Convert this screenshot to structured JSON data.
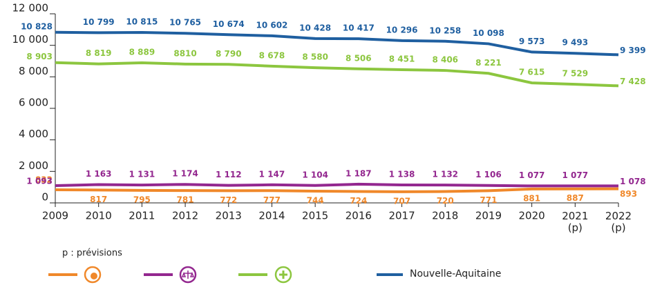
{
  "chart_data": {
    "type": "line",
    "categories": [
      "2009",
      "2010",
      "2011",
      "2012",
      "2013",
      "2014",
      "2015",
      "2016",
      "2017",
      "2018",
      "2019",
      "2020",
      "2021 (p)",
      "2022 (p)"
    ],
    "ylim": [
      0,
      12000
    ],
    "yticks": [
      0,
      {
        "value": 2000,
        "label": "2 000"
      },
      {
        "value": 4000,
        "label": "4 000"
      },
      {
        "value": 6000,
        "label": "6 000"
      },
      {
        "value": 8000,
        "label": "8 000"
      },
      {
        "value": 10000,
        "label": "10 000"
      },
      {
        "value": 12000,
        "label": "12 000"
      }
    ],
    "annotation": "p : prévisions",
    "series": [
      {
        "color": "#f0882a",
        "label_side": "below",
        "values": [
          832,
          817,
          795,
          781,
          772,
          777,
          744,
          724,
          707,
          720,
          771,
          881,
          887,
          893
        ]
      },
      {
        "color": "#93278f",
        "label_side": "above",
        "values": [
          1093,
          1163,
          1131,
          1174,
          1112,
          1147,
          1104,
          1187,
          1138,
          1132,
          1106,
          1077,
          1077,
          1078
        ],
        "value_labels": [
          "1 093",
          "1 163",
          "1 131",
          "1 174",
          "1 112",
          "1 147",
          "1 104",
          "1 187",
          "1 138",
          "1 132",
          "1 106",
          "1 077",
          "1 077",
          "1 078"
        ]
      },
      {
        "color": "#8cc63f",
        "label_side": "above",
        "values": [
          8903,
          8819,
          8889,
          8810,
          8790,
          8678,
          8580,
          8506,
          8451,
          8406,
          8221,
          7615,
          7529,
          7428
        ],
        "value_labels": [
          "8 903",
          "8 819",
          "8 889",
          "8810",
          "8 790",
          "8 678",
          "8 580",
          "8 506",
          "8 451",
          "8 406",
          "8 221",
          "7 615",
          "7 529",
          "7 428"
        ]
      },
      {
        "name": "Nouvelle-Aquitaine",
        "color": "#1f5fa0",
        "label_side": "above",
        "values": [
          10828,
          10799,
          10815,
          10765,
          10674,
          10602,
          10428,
          10417,
          10296,
          10258,
          10098,
          9573,
          9493,
          9399
        ],
        "value_labels": [
          "10 828",
          "10 799",
          "10 815",
          "10 765",
          "10 674",
          "10 602",
          "10 428",
          "10 417",
          "10 296",
          "10 258",
          "10 098",
          "9 573",
          "9 493",
          "9 399"
        ]
      }
    ]
  }
}
